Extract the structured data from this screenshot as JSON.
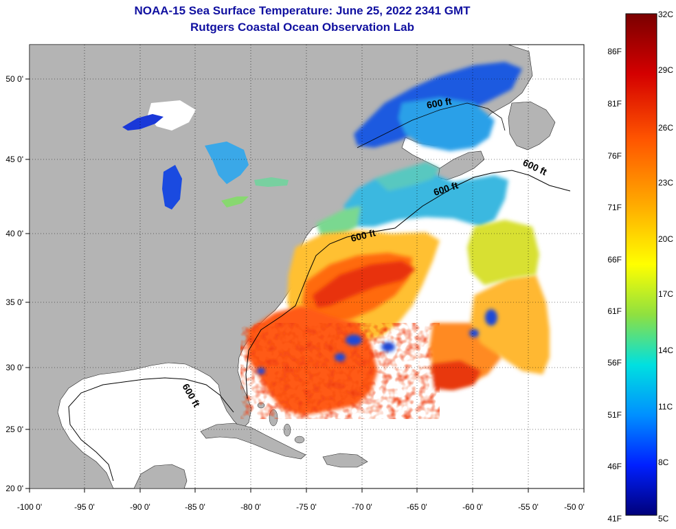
{
  "header": {
    "title": "NOAA-15 Sea Surface Temperature:  June 25, 2022 2341 GMT",
    "subtitle": "Rutgers Coastal Ocean Observation Lab"
  },
  "axes": {
    "lon_labels": [
      "-100 0'",
      "-95 0'",
      "-90 0'",
      "-85 0'",
      "-80 0'",
      "-75 0'",
      "-70 0'",
      "-65 0'",
      "-60 0'",
      "-55 0'",
      "-50 0'"
    ],
    "lat_labels": [
      "50 0'",
      "45 0'",
      "40 0'",
      "35 0'",
      "30 0'",
      "25 0'",
      "20 0'"
    ]
  },
  "contour_labels": [
    "600 ft",
    "600 ft",
    "600 ft",
    "600 ft",
    "600 ft"
  ],
  "colorbar": {
    "celsius": [
      "32C",
      "29C",
      "26C",
      "23C",
      "20C",
      "17C",
      "14C",
      "11C",
      "8C",
      "5C"
    ],
    "fahrenheit": [
      "86F",
      "81F",
      "76F",
      "71F",
      "66F",
      "61F",
      "56F",
      "51F",
      "46F",
      "41F"
    ]
  },
  "colors": {
    "land": "#b4b4b4",
    "title": "#1010a0",
    "warm": "#e23a0e",
    "cool": "#2a9ae0",
    "cold": "#1a2fc8"
  }
}
